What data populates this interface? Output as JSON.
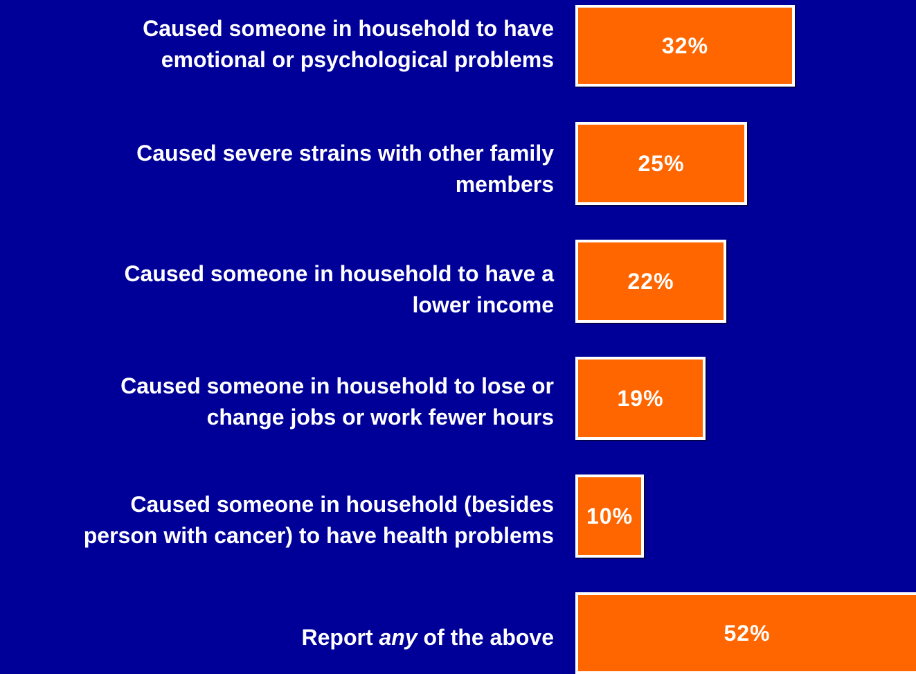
{
  "chart_data": {
    "type": "bar",
    "orientation": "horizontal",
    "title": "",
    "xlabel": "",
    "ylabel": "",
    "categories": [
      "Caused someone in household to have emotional or psychological problems",
      "Caused severe strains with other family members",
      "Caused someone in household to have a lower income",
      "Caused someone in household to lose or change jobs or work fewer hours",
      "Caused someone in household (besides person with cancer) to have health problems",
      "Report any of the above"
    ],
    "label_lines": [
      [
        "Caused someone in household to have",
        "emotional or psychological problems"
      ],
      [
        "Caused severe strains with other family",
        "members"
      ],
      [
        "Caused someone in household to have a",
        "lower income"
      ],
      [
        "Caused someone in household to lose or",
        "change jobs or work fewer hours"
      ],
      [
        "Caused someone in household (besides",
        "person with cancer) to have health problems"
      ],
      [
        "Report ",
        "any",
        " of the above"
      ]
    ],
    "values": [
      32,
      25,
      22,
      19,
      10,
      52
    ],
    "value_labels": [
      "32%",
      "25%",
      "22%",
      "19%",
      "10%",
      "52%"
    ],
    "unit": "%",
    "grid": false,
    "legend": "none",
    "colors": {
      "background": "#000099",
      "bar": "#ff6600",
      "bar_border": "#ffffff",
      "text": "#ffffff"
    }
  }
}
